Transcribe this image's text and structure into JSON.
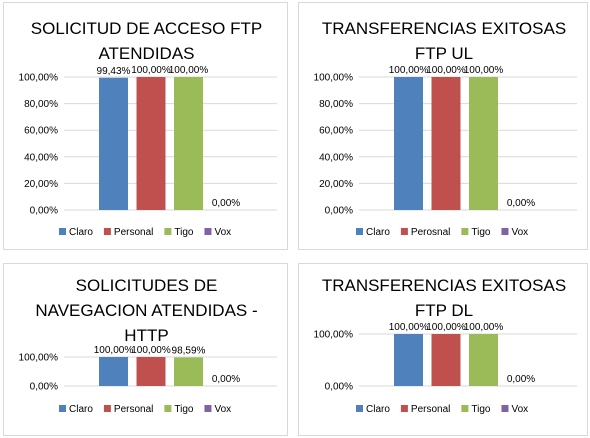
{
  "colors": {
    "Claro": "#4f81bd",
    "Personal": "#c0504d",
    "Perosnal": "#c0504d",
    "Tigo": "#9bbb59",
    "Vox": "#8064a2",
    "gridline": "#d9d9d9"
  },
  "chart_data": [
    {
      "type": "bar",
      "title": "SOLICITUD DE ACCESO FTP ATENDIDAS",
      "title_lines": [
        "SOLICITUD DE ACCESO FTP",
        "ATENDIDAS"
      ],
      "yticks": [
        "0,00%",
        "20,00%",
        "40,00%",
        "60,00%",
        "80,00%",
        "100,00%"
      ],
      "ylim": [
        0,
        100
      ],
      "grid": true,
      "legend_position": "bottom",
      "series": [
        {
          "name": "Claro",
          "values": [
            99.43
          ],
          "label": "99,43%"
        },
        {
          "name": "Personal",
          "values": [
            100
          ],
          "label": "100,00%"
        },
        {
          "name": "Tigo",
          "values": [
            100
          ],
          "label": "100,00%"
        },
        {
          "name": "Vox",
          "values": [
            0
          ],
          "label": "0,00%"
        }
      ]
    },
    {
      "type": "bar",
      "title": "TRANSFERENCIAS EXITOSAS FTP UL",
      "title_lines": [
        "TRANSFERENCIAS EXITOSAS",
        "FTP UL"
      ],
      "yticks": [
        "0,00%",
        "20,00%",
        "40,00%",
        "60,00%",
        "80,00%",
        "100,00%"
      ],
      "ylim": [
        0,
        100
      ],
      "grid": true,
      "legend_position": "bottom",
      "series": [
        {
          "name": "Claro",
          "values": [
            100
          ],
          "label": "100,00%"
        },
        {
          "name": "Perosnal",
          "values": [
            100
          ],
          "label": "100,00%"
        },
        {
          "name": "Tigo",
          "values": [
            100
          ],
          "label": "100,00%"
        },
        {
          "name": "Vox",
          "values": [
            0
          ],
          "label": "0,00%"
        }
      ]
    },
    {
      "type": "bar",
      "title": "SOLICITUDES DE NAVEGACION ATENDIDAS - HTTP",
      "title_lines": [
        "SOLICITUDES DE",
        "NAVEGACION ATENDIDAS -",
        "HTTP"
      ],
      "yticks": [
        "0,00%",
        "100,00%"
      ],
      "ylim": [
        0,
        100
      ],
      "grid": true,
      "legend_position": "bottom",
      "series": [
        {
          "name": "Claro",
          "values": [
            100
          ],
          "label": "100,00%"
        },
        {
          "name": "Personal",
          "values": [
            100
          ],
          "label": "100,00%"
        },
        {
          "name": "Tigo",
          "values": [
            98.59
          ],
          "label": "98,59%"
        },
        {
          "name": "Vox",
          "values": [
            0
          ],
          "label": "0,00%"
        }
      ]
    },
    {
      "type": "bar",
      "title": "TRANSFERENCIAS EXITOSAS FTP DL",
      "title_lines": [
        "TRANSFERENCIAS EXITOSAS",
        "FTP DL"
      ],
      "yticks": [
        "0,00%",
        "100,00%"
      ],
      "ylim": [
        0,
        100
      ],
      "grid": true,
      "legend_position": "bottom",
      "series": [
        {
          "name": "Claro",
          "values": [
            100
          ],
          "label": "100,00%"
        },
        {
          "name": "Personal",
          "values": [
            100
          ],
          "label": "100,00%"
        },
        {
          "name": "Tigo",
          "values": [
            100
          ],
          "label": "100,00%"
        },
        {
          "name": "Vox",
          "values": [
            0
          ],
          "label": "0,00%"
        }
      ]
    }
  ]
}
